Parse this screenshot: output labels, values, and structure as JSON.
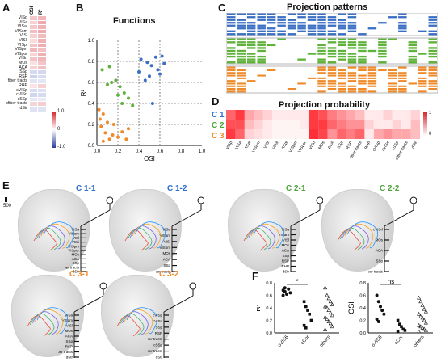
{
  "panels": {
    "A": {
      "label": "A",
      "col_headers": [
        "OSI",
        "R²"
      ],
      "rows": [
        "VISp",
        "VISa",
        "VISal",
        "VISam",
        "VISl",
        "VISli",
        "VISpl",
        "VISpm",
        "VISpor",
        "VISrl",
        "MOs",
        "ACA",
        "SSp",
        "RSP",
        "fiber tracts",
        "RHP",
        "cVISp",
        "cVISrl",
        "cSSp",
        "cfiber tracts",
        "dStr"
      ],
      "colorbar_ticks": [
        "1.0",
        "0",
        "-1.0"
      ]
    },
    "B": {
      "label": "B",
      "title": "Functions",
      "xlabel": "OSI",
      "ylabel": "R²",
      "xticks": [
        "0.0",
        "0.2",
        "0.4",
        "0.6",
        "0.8",
        "1.0"
      ],
      "yticks": [
        "0.0",
        "0.2",
        "0.4",
        "0.6",
        "0.8",
        "1.0"
      ]
    },
    "C": {
      "label": "C",
      "title": "Projection patterns"
    },
    "D": {
      "label": "D",
      "title": "Projection probability",
      "row_labels": [
        "C 1",
        "C 2",
        "C 3"
      ],
      "col_labels": [
        "VISp",
        "VISa",
        "VISal",
        "VISam",
        "VISl",
        "VISli",
        "VISpl",
        "VISpm",
        "VISpor",
        "VISrl",
        "MOs",
        "ACA",
        "SSp",
        "RSP",
        "fiber tracts",
        "RHP",
        "cVISp",
        "cVISrl",
        "cSSp",
        "cfiber tracts",
        "dStr"
      ],
      "colorbar_ticks": [
        "1",
        "0"
      ]
    },
    "E": {
      "label": "E",
      "scale": "500",
      "brains": [
        {
          "title": "C 1-1",
          "targets": [
            "VISa",
            "VISam",
            "VISl",
            "VISli",
            "VISpm",
            "VISpor",
            "MOs",
            "ACA",
            "SSp",
            "fiber tracts",
            "dStr"
          ]
        },
        {
          "title": "C 1-2",
          "targets": [
            "VISa",
            "VISam",
            "VISl",
            "VISpm",
            "MOs",
            "ACA",
            "SSp",
            "fiber tracts"
          ]
        },
        {
          "title": "C 2-1",
          "targets": [
            "VISa",
            "VISam",
            "VISl",
            "MOs",
            "ACA",
            "SSp",
            "RSP",
            "RHP",
            "dStr"
          ]
        },
        {
          "title": "C 2-2",
          "targets": [
            "cVISrl",
            "MOs",
            "ACA",
            "SSp",
            "fiber tracts"
          ]
        },
        {
          "title": "C 3-1",
          "targets": [
            "VISa",
            "VISam",
            "VISl",
            "MOs",
            "ACA",
            "SSp",
            "RSP",
            "fiber tracts",
            "dStr"
          ]
        },
        {
          "title": "C 3-2",
          "targets": [
            "cVISp",
            "cVISrl",
            "SSp",
            "RSP",
            "fiber tracts",
            "cSSp",
            "cfiber tracts",
            "dStr"
          ]
        }
      ]
    },
    "F": {
      "label": "F",
      "sig1": "*",
      "sig2": "ns",
      "left_ylabel": "R²",
      "right_ylabel": "OSI",
      "groups": [
        "oVIS6",
        "cCor",
        "others"
      ],
      "yticks": [
        "0.0",
        "0.2",
        "0.4",
        "0.6",
        "0.8"
      ]
    }
  },
  "chart_data": [
    {
      "type": "scatter",
      "title": "Functions",
      "xlabel": "OSI",
      "ylabel": "R²",
      "xlim": [
        0,
        1
      ],
      "ylim": [
        0,
        1
      ],
      "series": [
        {
          "color": "#3a6fc4",
          "points": [
            [
              0.42,
              0.82
            ],
            [
              0.48,
              0.79
            ],
            [
              0.52,
              0.76
            ],
            [
              0.56,
              0.84
            ],
            [
              0.58,
              0.72
            ],
            [
              0.62,
              0.85
            ],
            [
              0.6,
              0.68
            ],
            [
              0.5,
              0.66
            ],
            [
              0.46,
              0.62
            ],
            [
              0.64,
              0.78
            ],
            [
              0.4,
              0.7
            ],
            [
              0.53,
              0.4
            ]
          ]
        },
        {
          "color": "#5fb33a",
          "points": [
            [
              0.05,
              0.72
            ],
            [
              0.12,
              0.75
            ],
            [
              0.18,
              0.62
            ],
            [
              0.14,
              0.6
            ],
            [
              0.2,
              0.48
            ],
            [
              0.26,
              0.5
            ],
            [
              0.3,
              0.45
            ],
            [
              0.24,
              0.4
            ],
            [
              0.34,
              0.38
            ],
            [
              0.22,
              0.56
            ],
            [
              0.1,
              0.58
            ]
          ]
        },
        {
          "color": "#ef8a2a",
          "points": [
            [
              0.02,
              0.34
            ],
            [
              0.06,
              0.3
            ],
            [
              0.1,
              0.22
            ],
            [
              0.04,
              0.18
            ],
            [
              0.08,
              0.12
            ],
            [
              0.15,
              0.1
            ],
            [
              0.12,
              0.06
            ],
            [
              0.2,
              0.08
            ],
            [
              0.28,
              0.06
            ],
            [
              0.24,
              0.13
            ],
            [
              0.3,
              0.16
            ],
            [
              0.06,
              0.04
            ],
            [
              0.16,
              0.2
            ],
            [
              0.03,
              0.25
            ]
          ]
        }
      ]
    },
    {
      "type": "scatter",
      "title": "",
      "ylabel": "R²",
      "categories": [
        "oVIS6",
        "cCor",
        "others"
      ],
      "ylim": [
        0,
        0.8
      ],
      "series": [
        {
          "name": "oVIS6",
          "values": [
            0.68,
            0.66,
            0.62,
            0.7,
            0.64,
            0.6,
            0.72
          ]
        },
        {
          "name": "cCor",
          "values": [
            0.5,
            0.42,
            0.36,
            0.3,
            0.2,
            0.12,
            0.08
          ]
        },
        {
          "name": "others",
          "values": [
            0.72,
            0.6,
            0.55,
            0.5,
            0.45,
            0.42,
            0.4,
            0.36,
            0.32,
            0.28,
            0.25,
            0.22,
            0.18,
            0.15,
            0.1,
            0.05
          ]
        }
      ]
    },
    {
      "type": "scatter",
      "title": "",
      "ylabel": "OSI",
      "categories": [
        "oVIS6",
        "cCor",
        "others"
      ],
      "ylim": [
        0,
        0.8
      ],
      "series": [
        {
          "name": "oVIS6",
          "values": [
            0.6,
            0.5,
            0.42,
            0.36,
            0.3,
            0.22,
            0.18
          ]
        },
        {
          "name": "cCor",
          "values": [
            0.2,
            0.14,
            0.1,
            0.06,
            0.04,
            0.02
          ]
        },
        {
          "name": "others",
          "values": [
            0.56,
            0.5,
            0.44,
            0.38,
            0.34,
            0.3,
            0.26,
            0.24,
            0.2,
            0.16,
            0.12,
            0.1,
            0.08,
            0.06,
            0.04,
            0.02
          ]
        }
      ]
    }
  ]
}
